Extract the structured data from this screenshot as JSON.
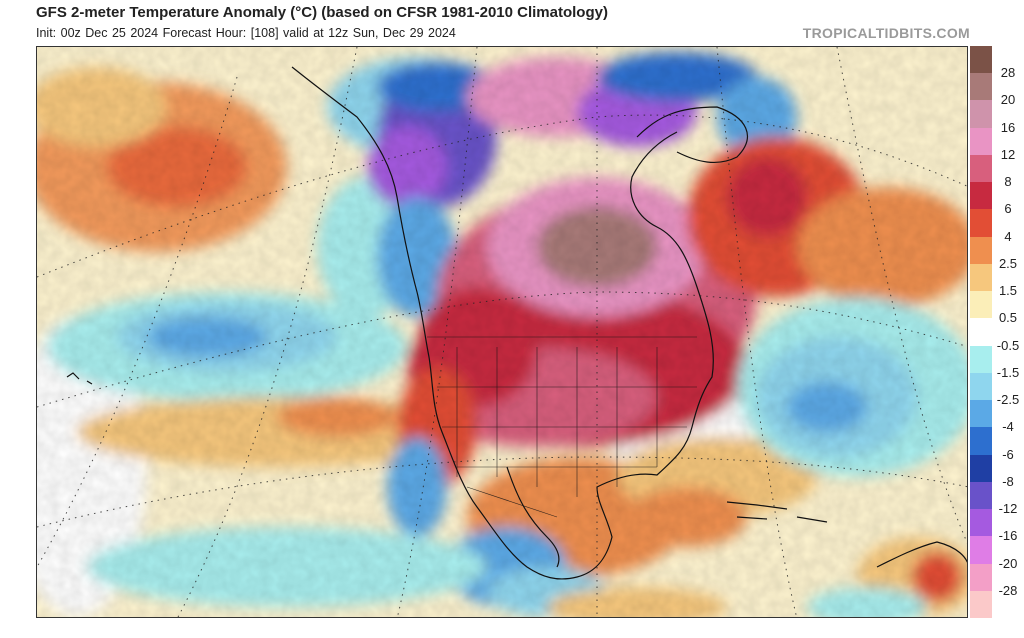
{
  "title": "GFS 2-meter Temperature Anomaly (°C) (based on CFSR 1981-2010 Climatology)",
  "subtitle": "Init: 00z Dec 25 2024   Forecast Hour: [108]   valid at 12z Sun, Dec 29 2024",
  "brand": "TROPICALTIDBITS.COM",
  "colorbar": {
    "unit": "°C",
    "levels": [
      "28",
      "20",
      "16",
      "12",
      "8",
      "6",
      "4",
      "2.5",
      "1.5",
      "0.5",
      "-0.5",
      "-1.5",
      "-2.5",
      "-4",
      "-6",
      "-8",
      "-12",
      "-16",
      "-20",
      "-28"
    ],
    "colors": [
      "#7b5247",
      "#a87a78",
      "#cf93ab",
      "#e994c4",
      "#d85f7d",
      "#c72a40",
      "#e24e35",
      "#ef8f4f",
      "#f6c77d",
      "#fbeeb8",
      "#ffffff",
      "#a8eeee",
      "#8fd6ee",
      "#5ba9e6",
      "#2d6fcf",
      "#1f3fa4",
      "#6952c9",
      "#a55ae0",
      "#df7de6",
      "#f39fc7",
      "#fbc9c9"
    ]
  }
}
